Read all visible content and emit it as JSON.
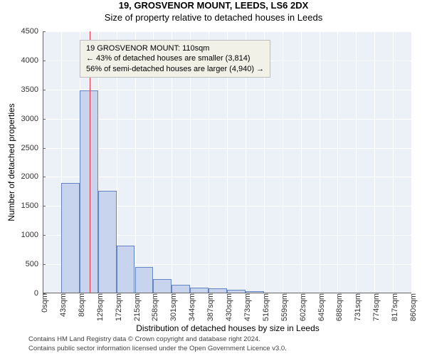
{
  "title": "19, GROSVENOR MOUNT, LEEDS, LS6 2DX",
  "subtitle": "Size of property relative to detached houses in Leeds",
  "chart": {
    "type": "histogram",
    "background_color": "#ecf0f7",
    "grid_color": "#ffffff",
    "bar_fill": "#c8d3ee",
    "bar_border": "#6585c2",
    "marker_color": "#e03a4a",
    "ylim": [
      0,
      4500
    ],
    "yticks": [
      0,
      500,
      1000,
      1500,
      2000,
      2500,
      3000,
      3500,
      4000,
      4500
    ],
    "xlim": [
      0,
      860
    ],
    "xticks": [
      0,
      43,
      86,
      129,
      172,
      215,
      258,
      301,
      344,
      387,
      430,
      473,
      516,
      559,
      602,
      645,
      688,
      731,
      774,
      817,
      860
    ],
    "xtick_labels": [
      "0sqm",
      "43sqm",
      "86sqm",
      "129sqm",
      "172sqm",
      "215sqm",
      "258sqm",
      "301sqm",
      "344sqm",
      "387sqm",
      "430sqm",
      "473sqm",
      "516sqm",
      "559sqm",
      "602sqm",
      "645sqm",
      "688sqm",
      "731sqm",
      "774sqm",
      "817sqm",
      "860sqm"
    ],
    "bars_x": [
      0,
      43,
      86,
      129,
      172,
      215,
      258,
      301,
      344,
      387,
      430,
      473,
      516,
      559,
      602,
      645,
      688,
      731,
      774,
      817
    ],
    "bar_width_value": 43,
    "bar_heights": [
      0,
      1900,
      3480,
      1760,
      820,
      450,
      240,
      150,
      100,
      80,
      60,
      40,
      0,
      0,
      0,
      0,
      0,
      0,
      0,
      0
    ],
    "marker_x": 110,
    "ylabel": "Number of detached properties",
    "xlabel": "Distribution of detached houses by size in Leeds",
    "tick_fontsize": 11,
    "label_fontsize": 12,
    "title_fontsize": 13
  },
  "annotation": {
    "line1": "19 GROSVENOR MOUNT: 110sqm",
    "line2": "← 43% of detached houses are smaller (3,814)",
    "line3": "56% of semi-detached houses are larger (4,940) →",
    "box_bg": "#f1f1e8",
    "box_border": "#bdbdbd"
  },
  "footer": {
    "line1": "Contains HM Land Registry data © Crown copyright and database right 2024.",
    "line2": "Contains public sector information licensed under the Open Government Licence v3.0."
  }
}
